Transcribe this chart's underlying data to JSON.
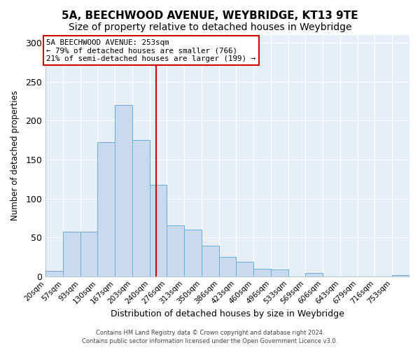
{
  "title": "5A, BEECHWOOD AVENUE, WEYBRIDGE, KT13 9TE",
  "subtitle": "Size of property relative to detached houses in Weybridge",
  "xlabel": "Distribution of detached houses by size in Weybridge",
  "ylabel": "Number of detached properties",
  "bar_labels": [
    "20sqm",
    "57sqm",
    "93sqm",
    "130sqm",
    "167sqm",
    "203sqm",
    "240sqm",
    "276sqm",
    "313sqm",
    "350sqm",
    "386sqm",
    "423sqm",
    "460sqm",
    "496sqm",
    "533sqm",
    "569sqm",
    "606sqm",
    "643sqm",
    "679sqm",
    "716sqm",
    "753sqm"
  ],
  "bar_values": [
    7,
    57,
    57,
    172,
    220,
    175,
    118,
    65,
    60,
    39,
    25,
    19,
    10,
    9,
    0,
    4,
    0,
    0,
    0,
    0,
    2
  ],
  "bar_color": "#c8daef",
  "bar_edge_color": "#6aaed6",
  "vline_bin_index": 6.47,
  "vline_color": "#cc0000",
  "ylim": [
    0,
    310
  ],
  "yticks": [
    0,
    50,
    100,
    150,
    200,
    250,
    300
  ],
  "annotation_title": "5A BEECHWOOD AVENUE: 253sqm",
  "annotation_line1": "← 79% of detached houses are smaller (766)",
  "annotation_line2": "21% of semi-detached houses are larger (199) →",
  "annotation_box_facecolor": "#ffffff",
  "annotation_box_edgecolor": "#cc0000",
  "footer_line1": "Contains HM Land Registry data © Crown copyright and database right 2024.",
  "footer_line2": "Contains public sector information licensed under the Open Government Licence v3.0.",
  "plot_bg_color": "#e8eef7",
  "fig_bg_color": "#ffffff",
  "title_fontsize": 11,
  "subtitle_fontsize": 10,
  "grid_color": "#ffffff",
  "tick_label_fontsize": 7.5
}
